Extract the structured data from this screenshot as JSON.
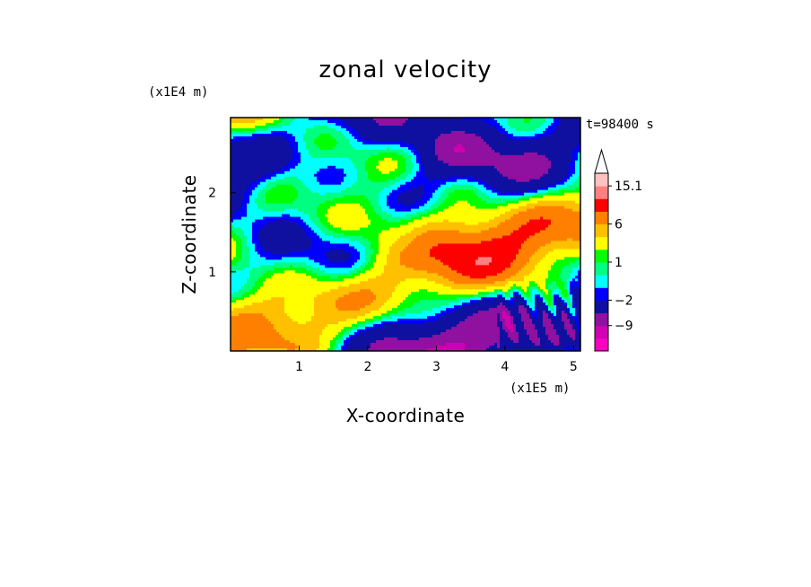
{
  "chart_data": {
    "type": "heatmap",
    "title": "zonal velocity",
    "xlabel": "X-coordinate",
    "ylabel": "Z-coordinate",
    "x_unit": "(x1E5 m)",
    "y_unit": "(x1E4 m)",
    "time_label": "t=98400 s",
    "xlim": [
      0,
      5.1
    ],
    "ylim": [
      0,
      2.95
    ],
    "x_ticks": [
      "1",
      "2",
      "3",
      "4",
      "5"
    ],
    "x_tick_values": [
      1,
      2,
      3,
      4,
      5
    ],
    "y_ticks": [
      "1",
      "2"
    ],
    "y_tick_values": [
      1,
      2
    ],
    "colorbar": {
      "labels": [
        "15.1",
        "6",
        "1",
        "−2",
        "−9"
      ],
      "label_values": [
        15.1,
        6,
        1,
        -2,
        -9
      ],
      "levels": [
        -15,
        -12,
        -9,
        -6,
        -2,
        -1,
        0,
        1,
        2,
        4,
        6,
        9,
        12,
        15.1
      ],
      "colors": [
        "#ff00c0",
        "#d000b0",
        "#9010a0",
        "#1010a0",
        "#0000ff",
        "#00ffff",
        "#00ff80",
        "#00ff00",
        "#ffff00",
        "#ffc000",
        "#ff8000",
        "#ff0000",
        "#ff8080",
        "#ffc0c0"
      ],
      "extend": "max"
    }
  }
}
